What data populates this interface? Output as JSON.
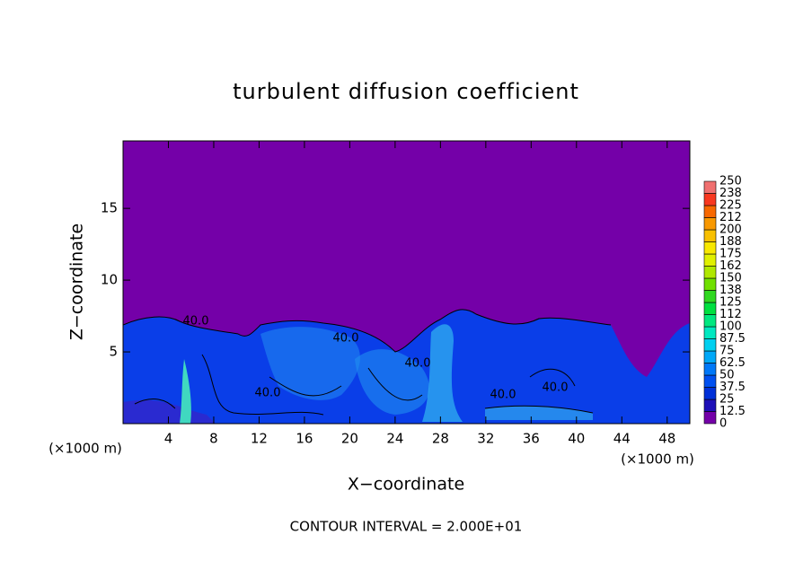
{
  "chart_data": {
    "type": "contour",
    "title": "turbulent diffusion coefficient",
    "x_label": "X−coordinate",
    "y_label": "Z−coordinate",
    "x_unit_left": "(×1000 m)",
    "x_unit_right": "(×1000 m)",
    "footer": "CONTOUR INTERVAL = 2.000E+01",
    "contour_labels": [
      "40.0",
      "40.0",
      "40.0",
      "40.0",
      "40.0",
      "40.0"
    ],
    "xlim": [
      0,
      50
    ],
    "ylim": [
      0,
      19.7
    ],
    "xticks": [
      4,
      8,
      12,
      16,
      20,
      24,
      28,
      32,
      36,
      40,
      44,
      48
    ],
    "yticks": [
      5,
      10,
      15
    ],
    "background_color": "#7400a8",
    "colorbar": {
      "ticks": [
        0,
        12.5,
        25,
        37.5,
        50,
        62.5,
        75,
        87.5,
        100,
        {
          "value": 112.5,
          "label": "112"
        },
        125,
        {
          "value": 137.5,
          "label": "138"
        },
        150,
        {
          "value": 162.5,
          "label": "162"
        },
        175,
        {
          "value": 187.5,
          "label": "188"
        },
        200,
        {
          "value": 212.5,
          "label": "212"
        },
        225,
        {
          "value": 237.5,
          "label": "238"
        },
        250
      ],
      "colors": [
        "#7400a8",
        "#1e10b8",
        "#0030d8",
        "#0050f0",
        "#0078f8",
        "#00a8f8",
        "#00d0f0",
        "#00e8c0",
        "#00e880",
        "#00e040",
        "#30d820",
        "#70e000",
        "#b0e800",
        "#e0f000",
        "#f8e800",
        "#f8c000",
        "#f89800",
        "#f86800",
        "#f83820",
        "#f07070"
      ]
    }
  }
}
